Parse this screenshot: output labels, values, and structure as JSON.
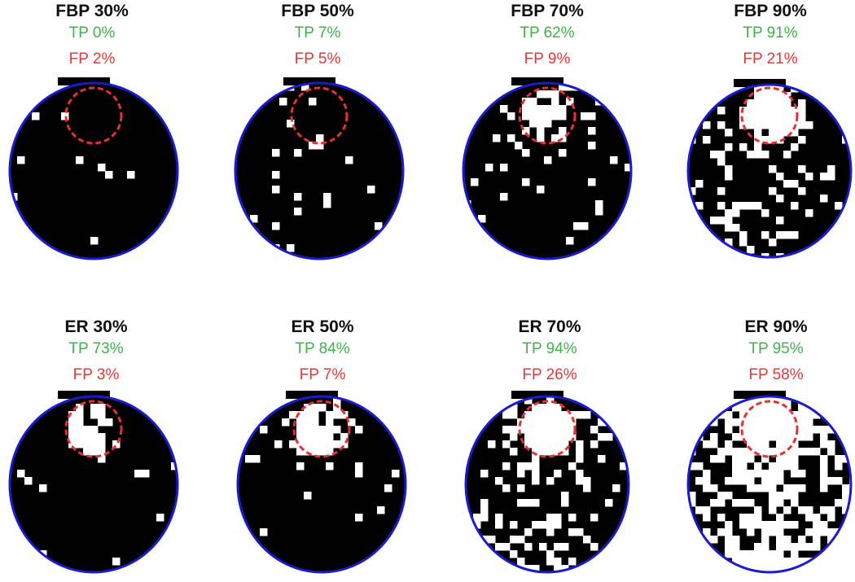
{
  "colors": {
    "title": "#111111",
    "tp": "#3fb24a",
    "fp": "#ee3333",
    "outline": "#1a1ad0",
    "target_ring": "#e83030",
    "background_region": "#000000",
    "detected_region": "#ffffff"
  },
  "panels": [
    {
      "title": "FBP 30%",
      "tp": "TP 0%",
      "fp": "FP 2%",
      "tp_fraction": 0.0,
      "fp_fraction": 0.02
    },
    {
      "title": "FBP 50%",
      "tp": "TP 7%",
      "fp": "FP 5%",
      "tp_fraction": 0.07,
      "fp_fraction": 0.05
    },
    {
      "title": "FBP 70%",
      "tp": "TP 62%",
      "fp": "FP 9%",
      "tp_fraction": 0.62,
      "fp_fraction": 0.09
    },
    {
      "title": "FBP 90%",
      "tp": "TP 91%",
      "fp": "FP 21%",
      "tp_fraction": 0.91,
      "fp_fraction": 0.21
    },
    {
      "title": "ER 30%",
      "tp": "TP 73%",
      "fp": "FP 3%",
      "tp_fraction": 0.73,
      "fp_fraction": 0.03
    },
    {
      "title": "ER 50%",
      "tp": "TP 84%",
      "fp": "FP 7%",
      "tp_fraction": 0.84,
      "fp_fraction": 0.07
    },
    {
      "title": "ER 70%",
      "tp": "TP 94%",
      "fp": "FP 26%",
      "tp_fraction": 0.94,
      "fp_fraction": 0.26
    },
    {
      "title": "ER 90%",
      "tp": "TP 95%",
      "fp": "FP 58%",
      "tp_fraction": 0.95,
      "fp_fraction": 0.58
    }
  ]
}
